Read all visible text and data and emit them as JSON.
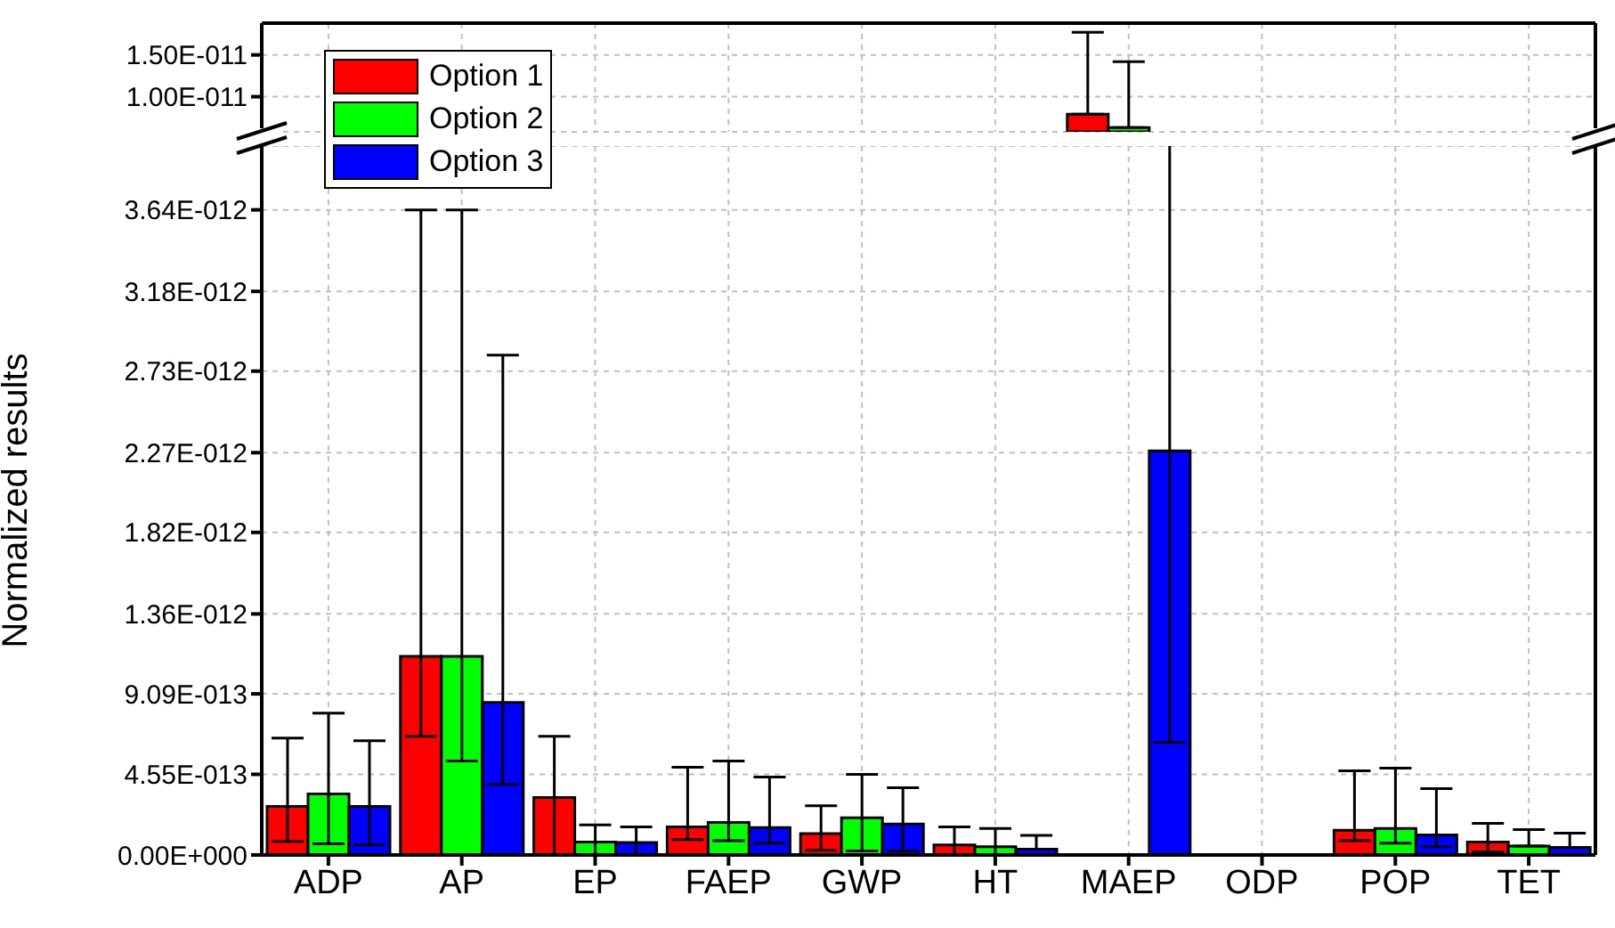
{
  "chart_data": [
    {
      "type": "bar",
      "series": [
        {
          "color": "#ff0000",
          "values": [
            null,
            null,
            null,
            null,
            null,
            null,
            7.9e-12,
            null,
            null,
            null
          ],
          "errors": [
            null,
            null,
            null,
            null,
            null,
            null,
            [
              7.9e-12,
              1.77e-11
            ],
            null,
            null,
            null
          ]
        },
        {
          "color": "#00ff00",
          "values": [
            null,
            null,
            null,
            null,
            null,
            null,
            6.3e-12,
            null,
            null,
            null
          ],
          "errors": [
            null,
            null,
            null,
            null,
            null,
            null,
            [
              6.3e-12,
              1.42e-11
            ],
            null,
            null,
            null
          ]
        },
        {
          "color": "#0000ff",
          "values": [
            null,
            null,
            null,
            null,
            null,
            null,
            null,
            null,
            null,
            null
          ]
        }
      ],
      "ylim": [
        5.8e-12,
        1.88e-11
      ],
      "yticks": [
        {
          "value": 1e-11,
          "label": "1.00E-011"
        },
        {
          "value": 1.5e-11,
          "label": "1.50E-011"
        }
      ],
      "grid": true,
      "tick_labels": "y"
    },
    {
      "type": "bar",
      "categories": [
        "ADP",
        "AP",
        "EP",
        "FAEP",
        "GWP",
        "HT",
        "MAEP",
        "ODP",
        "POP",
        "TET"
      ],
      "ylabel": "Normalized results",
      "series": [
        {
          "name": "Option 1",
          "color": "#ff0000",
          "values": [
            2.74e-13,
            1.12e-12,
            3.24e-13,
            1.58e-13,
            1.2e-13,
            5.7e-14,
            null,
            0,
            1.4e-13,
            7.3e-14
          ],
          "errors": [
            [
              7.7e-14,
              6.6e-13
            ],
            [
              6.7e-13,
              3.64e-12
            ],
            [
              0,
              6.7e-13
            ],
            [
              8.7e-14,
              4.95e-13
            ],
            [
              2.7e-14,
              2.78e-13
            ],
            [
              0,
              1.58e-13
            ],
            null,
            null,
            [
              8e-14,
              4.75e-13
            ],
            [
              1.7e-14,
              1.78e-13
            ]
          ]
        },
        {
          "name": "Option 2",
          "color": "#00ff00",
          "values": [
            3.44e-13,
            1.12e-12,
            7.3e-14,
            1.84e-13,
            2.1e-13,
            4.7e-14,
            null,
            0,
            1.5e-13,
            5e-14
          ],
          "errors": [
            [
              6.3e-14,
              8e-13
            ],
            [
              5.3e-13,
              3.64e-12
            ],
            [
              0,
              1.7e-13
            ],
            [
              8e-14,
              5.3e-13
            ],
            [
              2.3e-14,
              4.55e-13
            ],
            [
              0,
              1.5e-13
            ],
            null,
            null,
            [
              6.7e-14,
              4.9e-13
            ],
            [
              5e-14,
              1.43e-13
            ]
          ]
        },
        {
          "name": "Option 3",
          "color": "#0000ff",
          "values": [
            2.74e-13,
            8.6e-13,
            7e-14,
            1.54e-13,
            1.74e-13,
            3.3e-14,
            2.28e-12,
            0,
            1.13e-13,
            4.3e-14
          ],
          "errors": [
            [
              5.7e-14,
              6.45e-13
            ],
            [
              3.98e-13,
              2.82e-12
            ],
            [
              0,
              1.58e-13
            ],
            [
              6.7e-14,
              4.4e-13
            ],
            [
              2.3e-14,
              3.8e-13
            ],
            [
              3.3e-14,
              1.1e-13
            ],
            [
              6.35e-13,
              6.9e-12
            ],
            null,
            [
              4.7e-14,
              3.74e-13
            ],
            [
              4.3e-14,
              1.23e-13
            ]
          ]
        }
      ],
      "ylim": [
        0,
        4e-12
      ],
      "yticks": [
        {
          "value": 0,
          "label": "0.00E+000"
        },
        {
          "value": 4.55e-13,
          "label": "4.55E-013"
        },
        {
          "value": 9.09e-13,
          "label": "9.09E-013"
        },
        {
          "value": 1.36e-12,
          "label": "1.36E-012"
        },
        {
          "value": 1.82e-12,
          "label": "1.82E-012"
        },
        {
          "value": 2.27e-12,
          "label": "2.27E-012"
        },
        {
          "value": 2.73e-12,
          "label": "2.73E-012"
        },
        {
          "value": 3.18e-12,
          "label": "3.18E-012"
        },
        {
          "value": 3.64e-12,
          "label": "3.64E-012"
        }
      ],
      "grid": true,
      "legend": "top left"
    }
  ]
}
